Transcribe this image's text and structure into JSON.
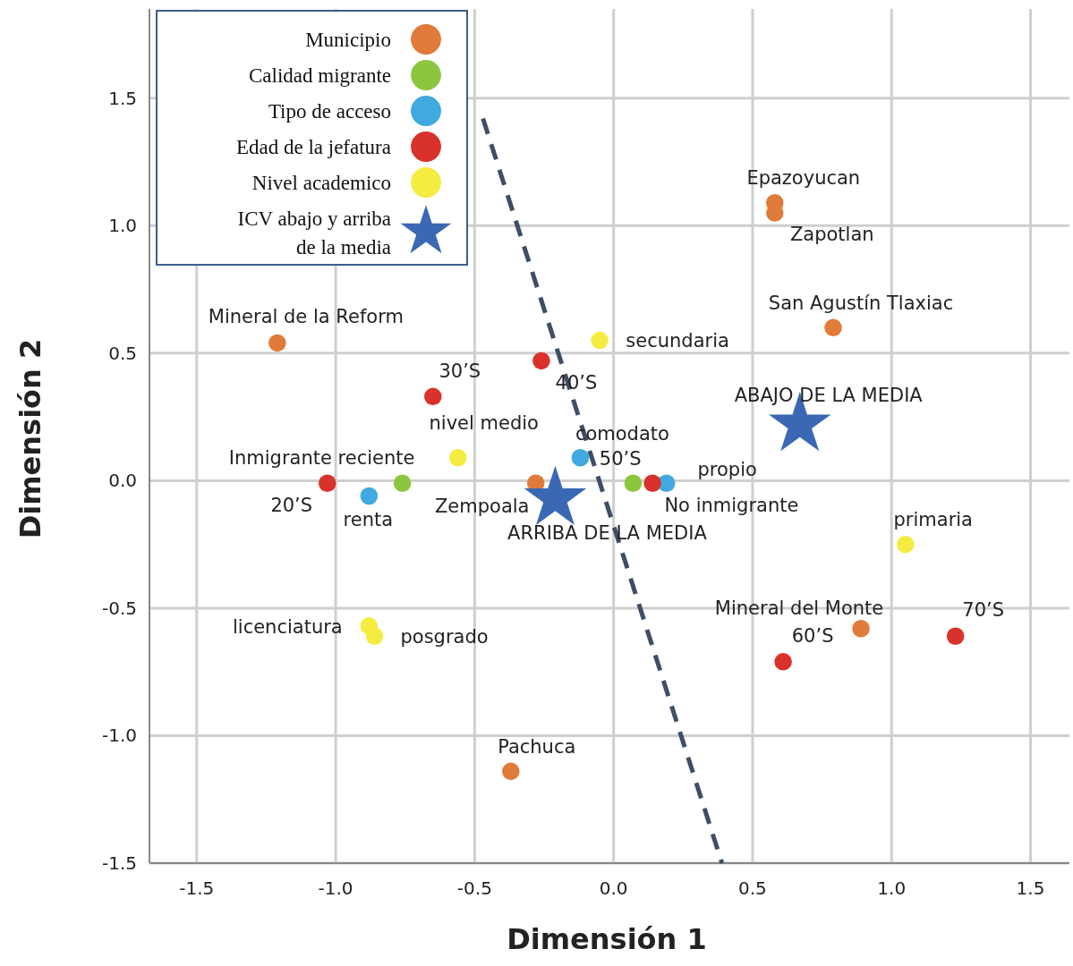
{
  "chart_data": {
    "type": "scatter",
    "xlabel": "Dimensión 1",
    "ylabel": "Dimensión 2",
    "xlim": [
      -1.67,
      1.64
    ],
    "ylim": [
      -1.5,
      1.85
    ],
    "xticks": [
      -1.5,
      {
        "value": -1,
        "label": "-1.0"
      },
      -0.5,
      {
        "value": 0,
        "label": "0.0"
      },
      0.5,
      {
        "value": 1,
        "label": "1.0"
      },
      1.5
    ],
    "yticks": [
      -1.5,
      {
        "value": -1,
        "label": "-1.0"
      },
      -0.5,
      {
        "value": 0,
        "label": "0.0"
      },
      0.5,
      {
        "value": 1,
        "label": "1.0"
      },
      1.5
    ],
    "grid": true,
    "legend": "top left",
    "marker": "circle",
    "series": [
      {
        "name": "Municipio",
        "color": "#e07b39",
        "x": [
          0.58,
          0.58,
          0.79,
          -1.21,
          -0.28,
          0.89,
          -0.37
        ],
        "values": [
          1.09,
          1.05,
          0.6,
          0.54,
          -0.01,
          -0.58,
          -1.14
        ]
      },
      {
        "name": "Calidad migrante",
        "color": "#8cc63f",
        "x": [
          -0.76,
          0.07
        ],
        "values": [
          -0.01,
          -0.01
        ]
      },
      {
        "name": "Tipo de acceso",
        "color": "#3fa9e0",
        "x": [
          -0.88,
          -0.12,
          0.19
        ],
        "values": [
          -0.06,
          0.09,
          -0.01
        ]
      },
      {
        "name": "Edad de la jefatura",
        "color": "#d9312b",
        "x": [
          -1.03,
          -0.65,
          -0.26,
          0.14,
          0.61,
          1.23
        ],
        "values": [
          -0.01,
          0.33,
          0.47,
          -0.01,
          -0.71,
          -0.61
        ]
      },
      {
        "name": "Nivel academico",
        "color": "#f5ec42",
        "x": [
          -0.05,
          -0.56,
          1.05,
          -0.88,
          -0.86
        ],
        "values": [
          0.55,
          0.09,
          -0.25,
          -0.57,
          -0.61
        ]
      },
      {
        "name": "ICV abajo y arriba de la media",
        "color": "#3a68b4",
        "marker": "star",
        "x": [
          0.67,
          -0.21
        ],
        "values": [
          0.22,
          -0.07
        ]
      },
      {
        "type": "line",
        "color": "#3d4f66",
        "line_style": "dashed",
        "marker": "none",
        "x": [
          -0.47,
          0.39
        ],
        "values": [
          1.42,
          -1.5
        ]
      }
    ],
    "annotations": [
      {
        "text": "Epazoyucan",
        "x": 0.58,
        "y": 1.09
      },
      {
        "text": "Zapotlan",
        "x": 0.58,
        "y": 1.05
      },
      {
        "text": "San Agustín Tlaxiac",
        "x": 0.79,
        "y": 0.6
      },
      {
        "text": "Mineral de la Reform",
        "x": -1.21,
        "y": 0.54
      },
      {
        "text": "Zempoala",
        "x": -0.28,
        "y": -0.01
      },
      {
        "text": "Mineral del Monte",
        "x": 0.89,
        "y": -0.58
      },
      {
        "text": "Pachuca",
        "x": -0.37,
        "y": -1.14
      },
      {
        "text": "Inmigrante reciente",
        "x": -0.76,
        "y": -0.01
      },
      {
        "text": "No inmigrante",
        "x": 0.07,
        "y": -0.01
      },
      {
        "text": "renta",
        "x": -0.88,
        "y": -0.06
      },
      {
        "text": "comodato",
        "x": -0.12,
        "y": 0.09
      },
      {
        "text": "propio",
        "x": 0.19,
        "y": -0.01
      },
      {
        "text": "20’S",
        "x": -1.03,
        "y": -0.01
      },
      {
        "text": "30’S",
        "x": -0.65,
        "y": 0.33
      },
      {
        "text": "40’S",
        "x": -0.26,
        "y": 0.47
      },
      {
        "text": "50’S",
        "x": 0.14,
        "y": -0.01
      },
      {
        "text": "60’S",
        "x": 0.61,
        "y": -0.71
      },
      {
        "text": "70’S",
        "x": 1.23,
        "y": -0.61
      },
      {
        "text": "secundaria",
        "x": -0.05,
        "y": 0.55
      },
      {
        "text": "nivel medio",
        "x": -0.56,
        "y": 0.09
      },
      {
        "text": "primaria",
        "x": 1.05,
        "y": -0.25
      },
      {
        "text": "licenciatura",
        "x": -0.88,
        "y": -0.57
      },
      {
        "text": "posgrado",
        "x": -0.86,
        "y": -0.61
      },
      {
        "text": "ABAJO DE LA MEDIA",
        "x": 0.67,
        "y": 0.22
      },
      {
        "text": "ARRIBA DE LA MEDIA",
        "x": -0.21,
        "y": -0.07
      }
    ]
  }
}
